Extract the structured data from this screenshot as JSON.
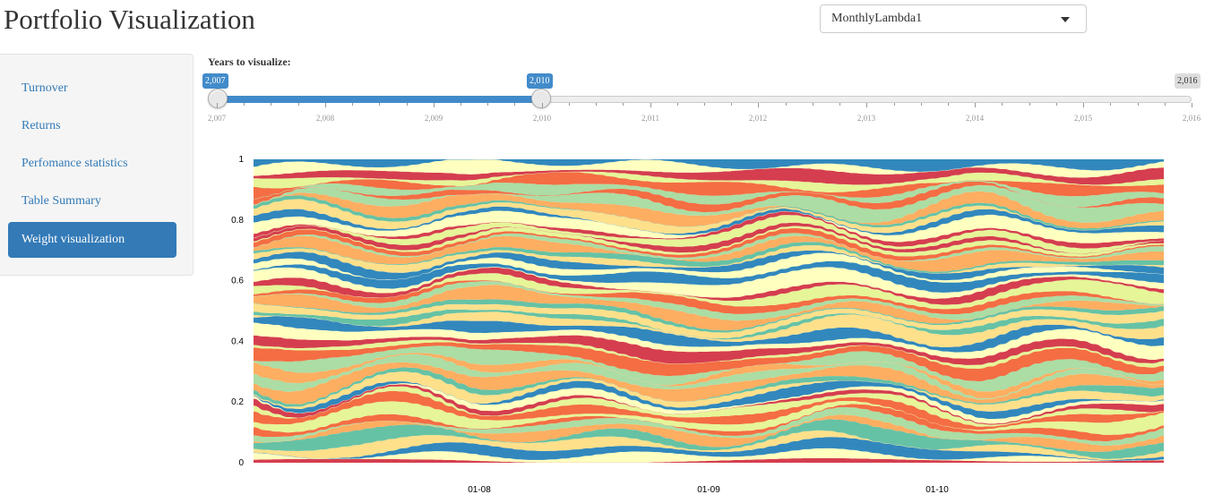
{
  "header": {
    "title": "Portfolio Visualization"
  },
  "dataset_select": {
    "selected": "MonthlyLambda1"
  },
  "sidebar": {
    "items": [
      {
        "label": "Turnover",
        "active": false
      },
      {
        "label": "Returns",
        "active": false
      },
      {
        "label": "Perfomance statistics",
        "active": false
      },
      {
        "label": "Table Summary",
        "active": false
      },
      {
        "label": "Weight visualization",
        "active": true
      }
    ]
  },
  "slider": {
    "label": "Years to visualize:",
    "min": 2007,
    "max": 2016,
    "from": 2007,
    "to": 2010,
    "from_label": "2,007",
    "to_label": "2,010",
    "max_label": "2,016",
    "tick_labels": [
      "2,007",
      "2,008",
      "2,009",
      "2,010",
      "2,011",
      "2,012",
      "2,013",
      "2,014",
      "2,015",
      "2,016"
    ],
    "colors": {
      "fill": "#428bca",
      "handle": "#e8e8e8"
    }
  },
  "chart_data": {
    "type": "area",
    "subtype": "stacked-streamgraph (normalized weights)",
    "ylim": [
      0,
      1
    ],
    "y_ticks": [
      "0",
      "0.2",
      "0.4",
      "0.6",
      "0.8",
      "1"
    ],
    "x_ticks": [
      "01-08",
      "01-09",
      "01-10"
    ],
    "palette": [
      "#d53e4f",
      "#f46d43",
      "#fdae61",
      "#fee08b",
      "#ffffbf",
      "#e6f598",
      "#abdda4",
      "#66c2a5",
      "#3288bd"
    ],
    "series_count": 60,
    "note_values": "weights per asset sum to 1 at each time; individual values not legible"
  }
}
